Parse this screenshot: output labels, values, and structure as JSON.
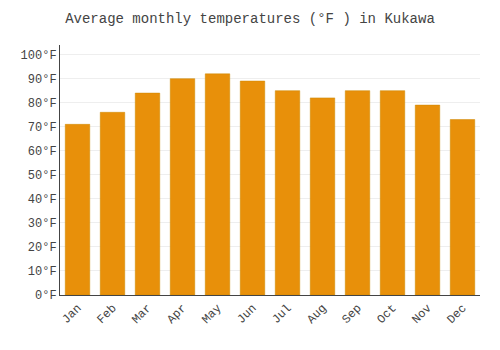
{
  "chart_data": {
    "type": "bar",
    "title": "Average monthly temperatures (°F ) in Kukawa",
    "categories": [
      "Jan",
      "Feb",
      "Mar",
      "Apr",
      "May",
      "Jun",
      "Jul",
      "Aug",
      "Sep",
      "Oct",
      "Nov",
      "Dec"
    ],
    "values": [
      71,
      76,
      84,
      90,
      92,
      89,
      85,
      82,
      85,
      85,
      79,
      73
    ],
    "color": "#E8900A",
    "ylim": [
      0,
      104
    ],
    "yticks": [
      {
        "value": 0,
        "label": "0°F"
      },
      {
        "value": 10,
        "label": "10°F"
      },
      {
        "value": 20,
        "label": "20°F"
      },
      {
        "value": 30,
        "label": "30°F"
      },
      {
        "value": 40,
        "label": "40°F"
      },
      {
        "value": 50,
        "label": "50°F"
      },
      {
        "value": 60,
        "label": "60°F"
      },
      {
        "value": 70,
        "label": "70°F"
      },
      {
        "value": 80,
        "label": "80°F"
      },
      {
        "value": 90,
        "label": "90°F"
      },
      {
        "value": 100,
        "label": "100°F"
      }
    ],
    "grid": true
  }
}
